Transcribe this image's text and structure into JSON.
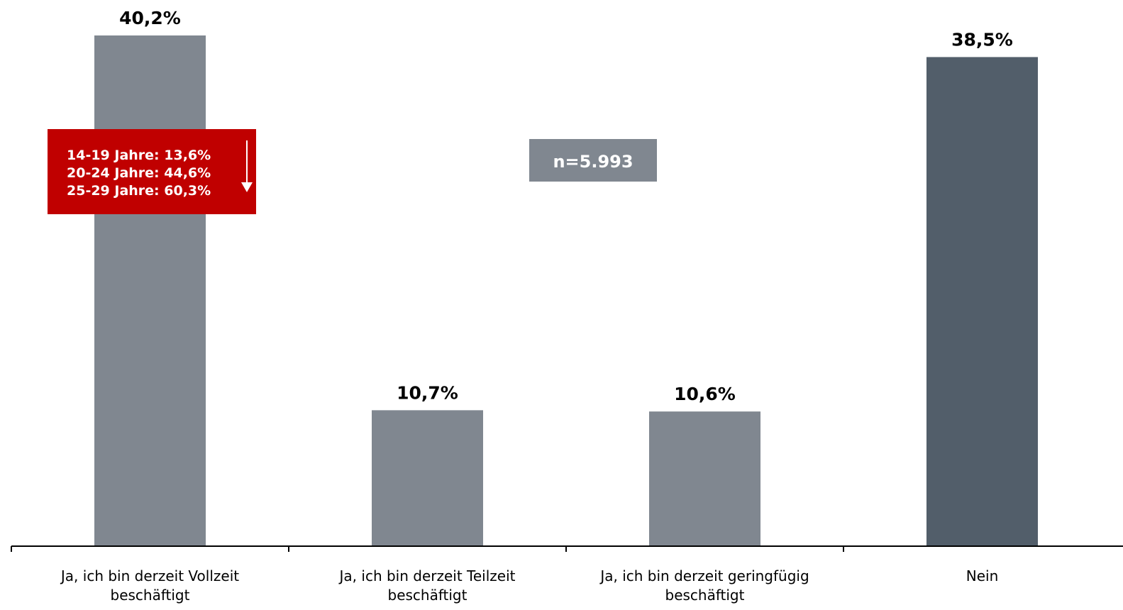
{
  "chart_data": {
    "type": "bar",
    "categories": [
      [
        "Ja, ich bin derzeit Vollzeit",
        "beschäftigt"
      ],
      [
        "Ja, ich bin derzeit Teilzeit",
        "beschäftigt"
      ],
      [
        "Ja, ich bin derzeit geringfügig",
        "beschäftigt"
      ],
      [
        "Nein"
      ]
    ],
    "values": [
      40.2,
      10.7,
      10.6,
      38.5
    ],
    "value_labels": [
      "40,2%",
      "10,7%",
      "10,6%",
      "38,5%"
    ],
    "title": "",
    "xlabel": "",
    "ylabel": "",
    "ylim": [
      0,
      42
    ],
    "grid": false,
    "bar_colors": [
      "#808790",
      "#808790",
      "#808790",
      "#525e6a"
    ],
    "axis_color": "#000000"
  },
  "callout": {
    "lines": [
      "14-19 Jahre: 13,6%",
      "20-24 Jahre: 44,6%",
      "25-29 Jahre: 60,3%"
    ],
    "background": "#c00000",
    "text_color": "#ffffff",
    "arrow": "down-arrow-icon"
  },
  "sample_box": {
    "text": "n=5.993",
    "background": "#808790",
    "text_color": "#ffffff"
  }
}
